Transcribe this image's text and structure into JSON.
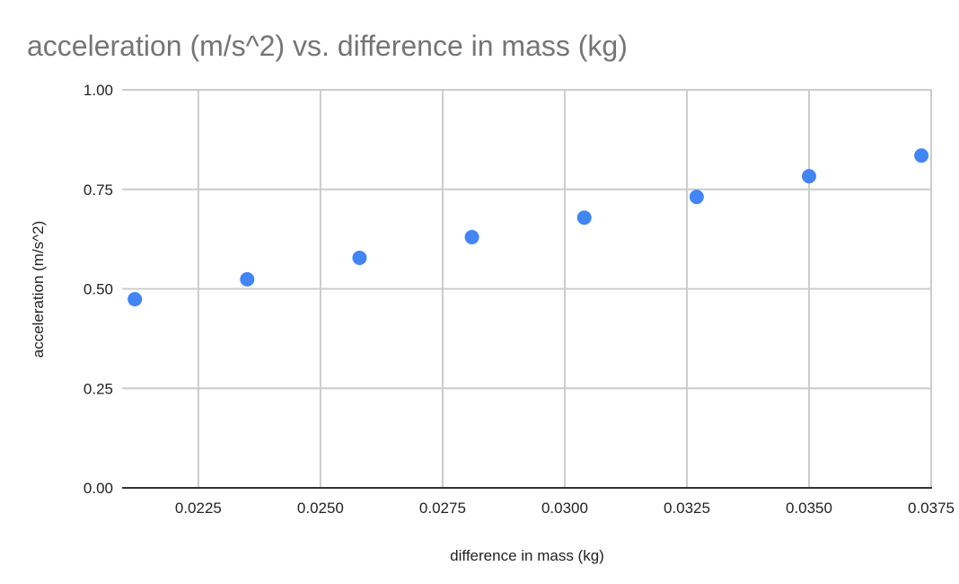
{
  "chart_data": {
    "type": "scatter",
    "title": "acceleration (m/s^2) vs. difference in mass (kg)",
    "xlabel": "difference in mass (kg)",
    "ylabel": "acceleration (m/s^2)",
    "xlim": [
      0.02094,
      0.0375
    ],
    "ylim": [
      0,
      1
    ],
    "grid": true,
    "legend": "none",
    "x_ticks": [
      {
        "value": 0.0225,
        "label": "0.0225"
      },
      {
        "value": 0.025,
        "label": "0.0250"
      },
      {
        "value": 0.0275,
        "label": "0.0275"
      },
      {
        "value": 0.03,
        "label": "0.0300"
      },
      {
        "value": 0.0325,
        "label": "0.0325"
      },
      {
        "value": 0.035,
        "label": "0.0350"
      },
      {
        "value": 0.0375,
        "label": "0.0375"
      }
    ],
    "y_ticks": [
      {
        "value": 0,
        "label": "0.00"
      },
      {
        "value": 0.25,
        "label": "0.25"
      },
      {
        "value": 0.5,
        "label": "0.50"
      },
      {
        "value": 0.75,
        "label": "0.75"
      },
      {
        "value": 1,
        "label": "1.00"
      }
    ],
    "series": [
      {
        "name": "acceleration (m/s^2)",
        "color": "#4285f4",
        "x": [
          0.0212,
          0.0235,
          0.0258,
          0.0281,
          0.0304,
          0.0327,
          0.035,
          0.0373
        ],
        "y": [
          0.474,
          0.524,
          0.578,
          0.63,
          0.679,
          0.731,
          0.783,
          0.835
        ]
      }
    ]
  }
}
